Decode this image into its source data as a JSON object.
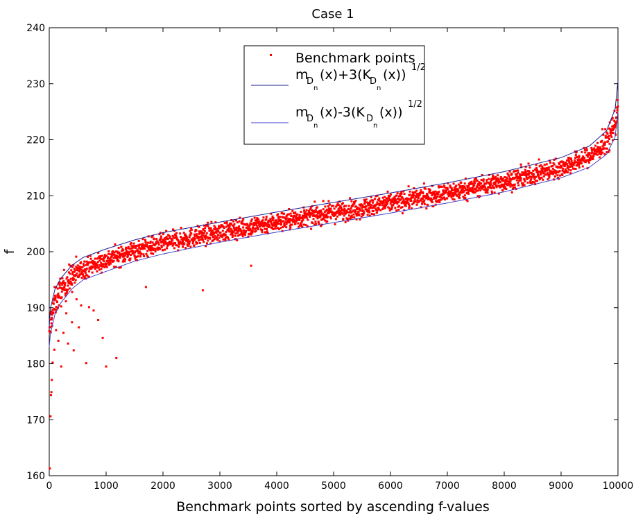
{
  "chart_data": {
    "type": "scatter",
    "title": "Case 1",
    "xlabel": "Benchmark points sorted by  ascending f-values",
    "ylabel": "f",
    "xlim": [
      0,
      10000
    ],
    "ylim": [
      160,
      240
    ],
    "xticks": [
      0,
      1000,
      2000,
      3000,
      4000,
      5000,
      6000,
      7000,
      8000,
      9000,
      10000
    ],
    "yticks": [
      160,
      170,
      180,
      190,
      200,
      210,
      220,
      230,
      240
    ],
    "grid": false,
    "legend_position": "top-center",
    "series": [
      {
        "name": "Benchmark points",
        "kind": "scatter",
        "color": "#ff0000",
        "n_points": 10000,
        "trend": {
          "x": [
            0,
            20,
            100,
            200,
            400,
            600,
            1000,
            1500,
            2000,
            3000,
            4000,
            5000,
            6000,
            7000,
            8000,
            9000,
            9500,
            9800,
            9950,
            10000
          ],
          "y": [
            184,
            187.5,
            191,
            193,
            195.5,
            197,
            198.5,
            200.2,
            201.5,
            203.5,
            205.3,
            207,
            208.7,
            210.5,
            212.5,
            215,
            217,
            219.5,
            223,
            226
          ]
        },
        "outliers": [
          {
            "x": 10,
            "y": 161.3
          },
          {
            "x": 22,
            "y": 170.6
          },
          {
            "x": 30,
            "y": 174.4
          },
          {
            "x": 38,
            "y": 174.9
          },
          {
            "x": 45,
            "y": 177.1
          },
          {
            "x": 60,
            "y": 180.2
          },
          {
            "x": 90,
            "y": 182.5
          },
          {
            "x": 160,
            "y": 184.1
          },
          {
            "x": 210,
            "y": 179.5
          },
          {
            "x": 250,
            "y": 185.5
          },
          {
            "x": 330,
            "y": 183.6
          },
          {
            "x": 400,
            "y": 187.4
          },
          {
            "x": 430,
            "y": 182.4
          },
          {
            "x": 520,
            "y": 186.5
          },
          {
            "x": 560,
            "y": 190.4
          },
          {
            "x": 650,
            "y": 180.1
          },
          {
            "x": 700,
            "y": 190.1
          },
          {
            "x": 780,
            "y": 189.5
          },
          {
            "x": 860,
            "y": 187.8
          },
          {
            "x": 940,
            "y": 184.6
          },
          {
            "x": 1000,
            "y": 179.5
          },
          {
            "x": 1180,
            "y": 181.0
          },
          {
            "x": 1700,
            "y": 193.7
          },
          {
            "x": 2700,
            "y": 193.1
          },
          {
            "x": 3550,
            "y": 197.5
          },
          {
            "x": 300,
            "y": 189.0
          },
          {
            "x": 120,
            "y": 186.0
          },
          {
            "x": 480,
            "y": 191.5
          }
        ]
      },
      {
        "name": "upper",
        "kind": "line",
        "color": "#1f1f8f",
        "x": [
          0,
          20,
          100,
          200,
          400,
          600,
          1000,
          1500,
          2000,
          3000,
          4000,
          5000,
          6000,
          7000,
          8000,
          9000,
          9500,
          9800,
          9950,
          10000
        ],
        "y": [
          186.5,
          189.8,
          193.3,
          195.2,
          197.6,
          199.0,
          200.5,
          202.1,
          203.4,
          205.3,
          207.1,
          208.8,
          210.5,
          212.3,
          214.3,
          216.8,
          218.9,
          221.6,
          225.5,
          230.5
        ]
      },
      {
        "name": "lower",
        "kind": "line",
        "color": "#4040c8",
        "x": [
          0,
          20,
          100,
          200,
          400,
          600,
          1000,
          1500,
          2000,
          3000,
          4000,
          5000,
          6000,
          7000,
          8000,
          9000,
          9500,
          9800,
          9950,
          10000
        ],
        "y": [
          183.0,
          185.3,
          188.8,
          190.8,
          193.4,
          195.0,
          196.5,
          198.3,
          199.6,
          201.7,
          203.5,
          205.2,
          206.9,
          208.7,
          210.7,
          213.2,
          215.1,
          217.4,
          220.5,
          225.0
        ]
      }
    ],
    "legend": {
      "entries": [
        {
          "label": "Benchmark points"
        },
        {
          "label_parts": [
            "m",
            "D",
            "n",
            "(x)+3(K",
            "D",
            "n",
            "(x))",
            "1/2"
          ]
        },
        {
          "label_parts": [
            "m",
            "D",
            "n",
            "(x)-3(K",
            "D",
            "n",
            "(x))",
            "1/2"
          ]
        }
      ]
    }
  }
}
